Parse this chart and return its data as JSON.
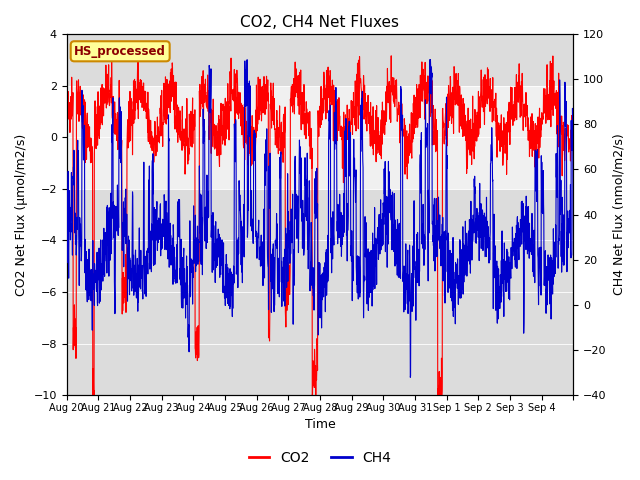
{
  "title": "CO2, CH4 Net Fluxes",
  "xlabel": "Time",
  "ylabel_left": "CO2 Net Flux (μmol/m2/s)",
  "ylabel_right": "CH4 Net Flux (nmol/m2/s)",
  "ylim_left": [
    -10,
    4
  ],
  "ylim_right": [
    -40,
    120
  ],
  "co2_color": "#FF0000",
  "ch4_color": "#0000CC",
  "background_color": "#FFFFFF",
  "plot_bg_color": "#DCDCDC",
  "band_color": "#F0F0F0",
  "legend_label": "HS_processed",
  "legend_box_facecolor": "#FFFF99",
  "legend_box_edgecolor": "#CC8800",
  "x_tick_labels": [
    "Aug 20",
    "Aug 21",
    "Aug 22",
    "Aug 23",
    "Aug 24",
    "Aug 25",
    "Aug 26",
    "Aug 27",
    "Aug 28",
    "Aug 29",
    "Aug 30",
    "Aug 31",
    "Sep 1",
    "Sep 2",
    "Sep 3",
    "Sep 4",
    ""
  ],
  "x_tick_positions": [
    0,
    1,
    2,
    3,
    4,
    5,
    6,
    7,
    8,
    9,
    10,
    11,
    12,
    13,
    14,
    15,
    16
  ],
  "n_points": 2016,
  "seed": 42
}
